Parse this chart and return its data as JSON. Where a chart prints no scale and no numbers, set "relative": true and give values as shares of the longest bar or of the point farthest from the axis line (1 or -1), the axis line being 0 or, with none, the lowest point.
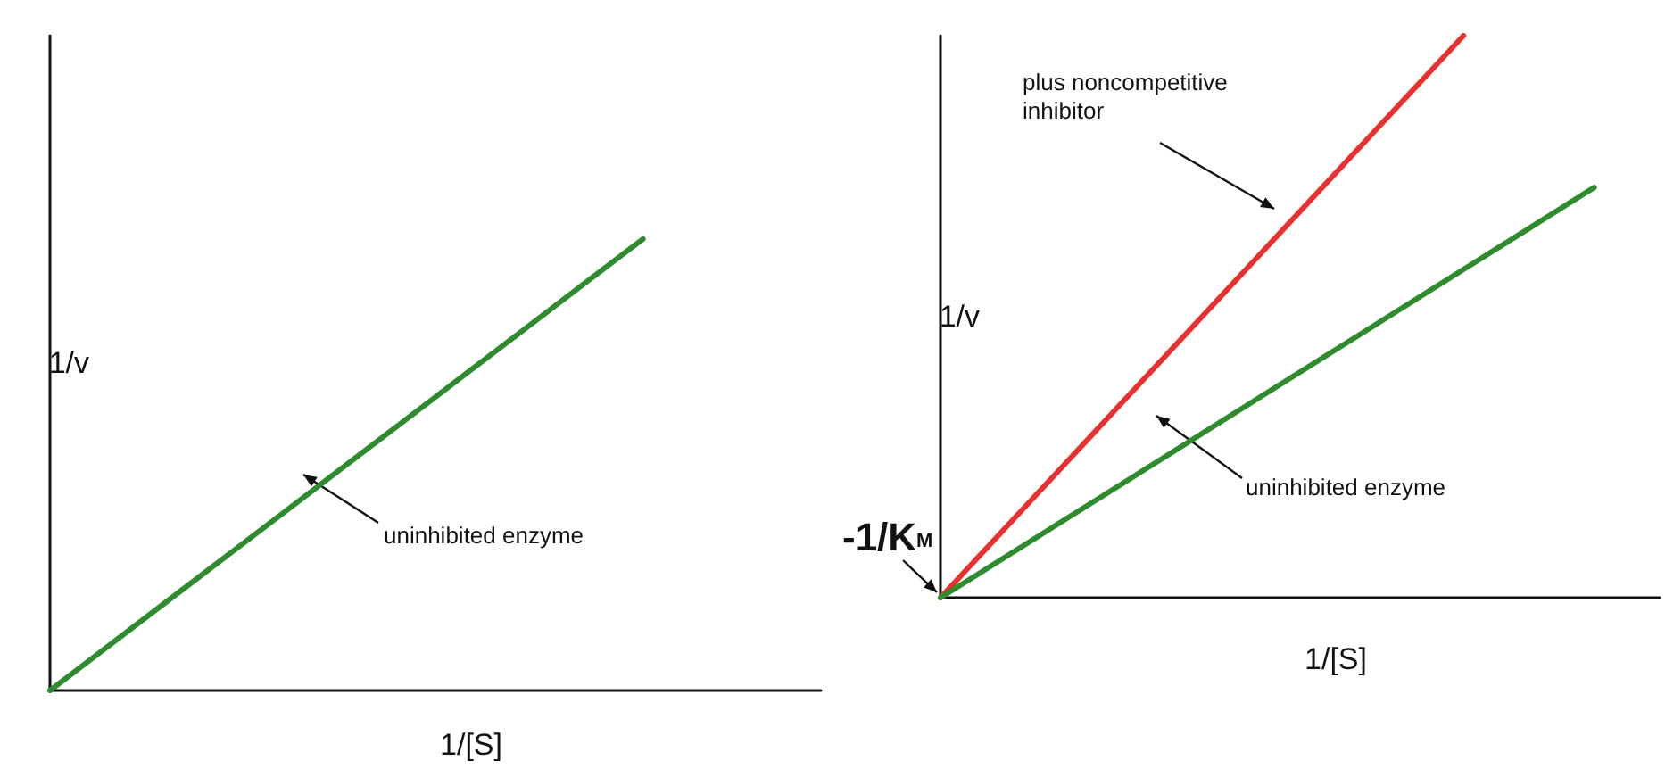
{
  "chart_data": [
    {
      "type": "line",
      "relative": true,
      "categories": [
        null,
        null,
        null,
        null,
        null,
        null,
        null,
        null,
        null,
        null,
        null,
        null,
        null,
        null
      ],
      "series": [
        {
          "color": "#2e8b2e",
          "values": [
            0,
            0.1,
            0.2,
            0.3,
            0.4,
            0.5,
            0.6,
            0.7,
            0.8,
            0.9,
            1,
            null,
            null,
            null
          ]
        }
      ],
      "xlabel": "1/[S]",
      "ylabel": "1/v",
      "annotations": [
        "uninhibited enzyme"
      ],
      "grid": false,
      "marker": "none"
    },
    {
      "type": "line",
      "relative": true,
      "categories": [
        null,
        null,
        null,
        null,
        null,
        null,
        null,
        null,
        null,
        null,
        null,
        null
      ],
      "series": [
        {
          "color": "#e8312f",
          "values": [
            0,
            0.125,
            0.25,
            0.375,
            0.5,
            0.625,
            0.75,
            0.875,
            1,
            null,
            null,
            null
          ]
        },
        {
          "color": "#2e8b2e",
          "values": [
            0,
            0.073,
            0.146,
            0.219,
            0.292,
            0.365,
            0.438,
            0.511,
            0.584,
            0.657,
            0.73,
            null
          ]
        }
      ],
      "xlabel": "1/[S]",
      "ylabel": "1/v",
      "annotations": [
        "plus noncompetitive\ninhibitor",
        "uninhibited enzyme",
        "-1/K$_{M}$"
      ],
      "grid": false,
      "marker": "none"
    }
  ]
}
